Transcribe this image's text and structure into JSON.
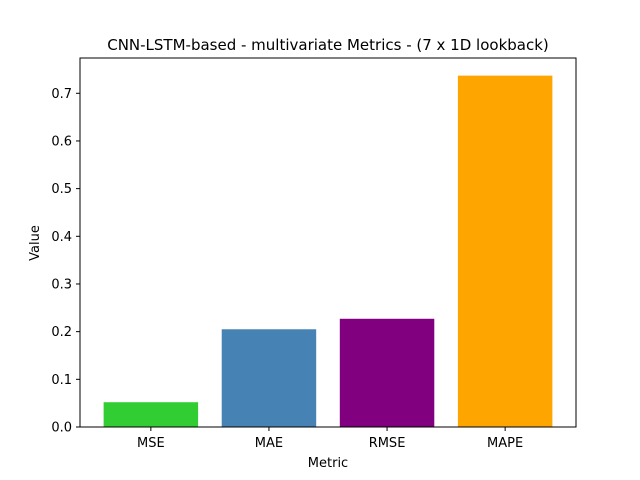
{
  "chart_data": {
    "type": "bar",
    "title": "CNN-LSTM-based - multivariate Metrics - (7 x 1D lookback)",
    "xlabel": "Metric",
    "ylabel": "Value",
    "categories": [
      "MSE",
      "MAE",
      "RMSE",
      "MAPE"
    ],
    "values": [
      0.052,
      0.205,
      0.227,
      0.737
    ],
    "colors": [
      "#32cd32",
      "#4682b4",
      "#800080",
      "#ffa500"
    ],
    "ylim": [
      0,
      0.774
    ],
    "yticks": [
      0.0,
      0.1,
      0.2,
      0.3,
      0.4,
      0.5,
      0.6,
      0.7
    ],
    "ytick_labels": [
      "0.0",
      "0.1",
      "0.2",
      "0.3",
      "0.4",
      "0.5",
      "0.6",
      "0.7"
    ],
    "grid": false,
    "legend": "none"
  }
}
